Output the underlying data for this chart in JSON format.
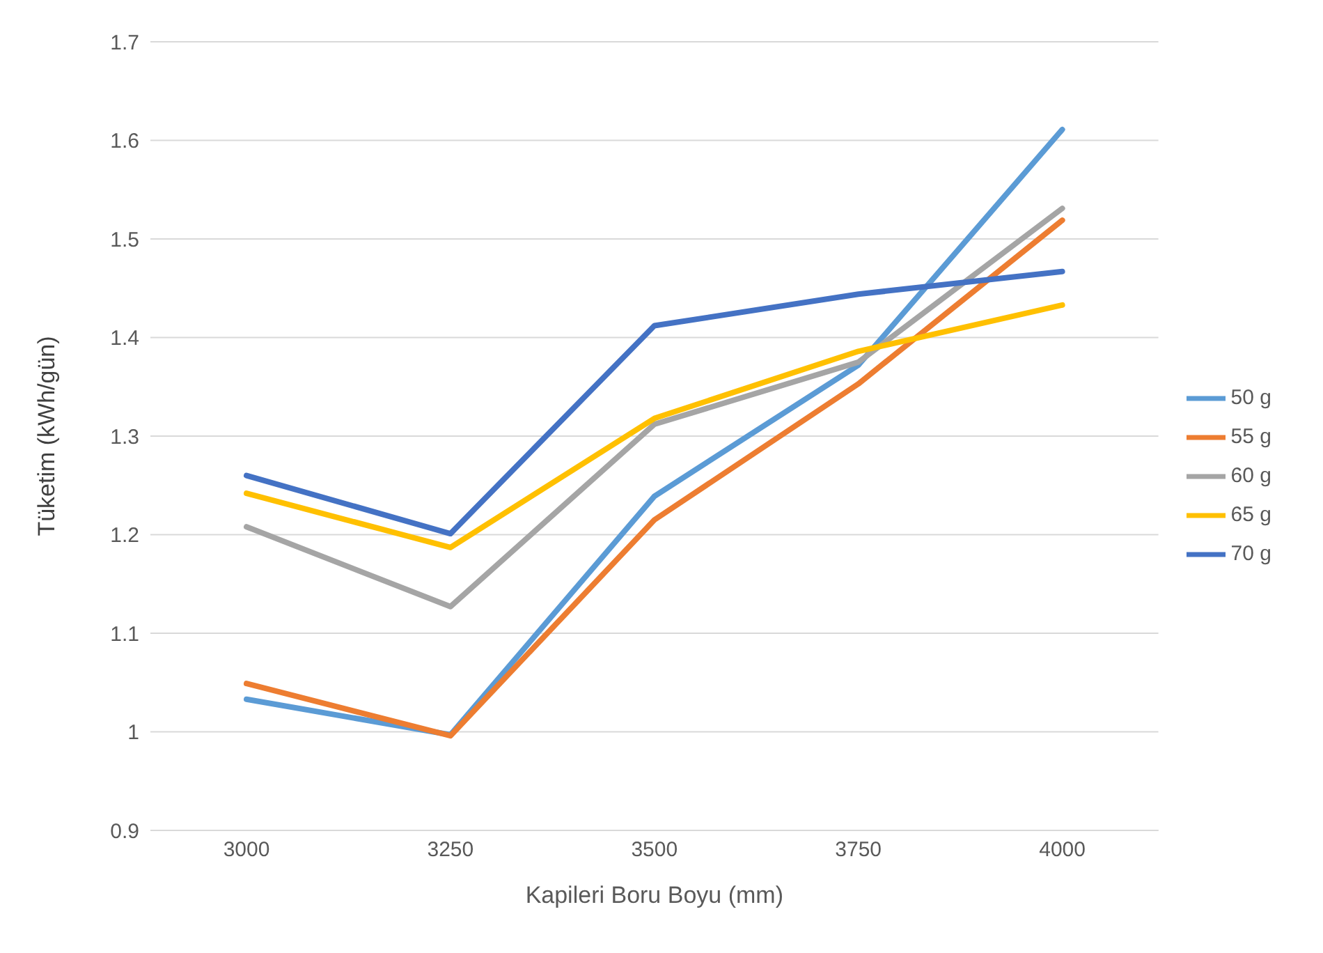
{
  "chart_data": {
    "type": "line",
    "xlabel": "Kapileri Boru Boyu (mm)",
    "ylabel": "Tüketim (kWh/gün)",
    "categories": [
      "3000",
      "3250",
      "3500",
      "3750",
      "4000"
    ],
    "series": [
      {
        "name": "50 g",
        "color": "#5b9bd5",
        "values": [
          1.033,
          0.997,
          1.239,
          1.372,
          1.611
        ]
      },
      {
        "name": "55 g",
        "color": "#ed7d31",
        "values": [
          1.049,
          0.996,
          1.215,
          1.353,
          1.519
        ]
      },
      {
        "name": "60 g",
        "color": "#a5a5a5",
        "values": [
          1.208,
          1.127,
          1.312,
          1.375,
          1.531
        ]
      },
      {
        "name": "65 g",
        "color": "#ffc000",
        "values": [
          1.242,
          1.187,
          1.318,
          1.386,
          1.433
        ]
      },
      {
        "name": "70 g",
        "color": "#4472c4",
        "values": [
          1.26,
          1.201,
          1.412,
          1.444,
          1.467
        ]
      }
    ],
    "ylim": [
      0.9,
      1.7
    ],
    "yticks": [
      0.9,
      1,
      1.1,
      1.2,
      1.3,
      1.4,
      1.5,
      1.6,
      1.7
    ],
    "grid": "y",
    "legend": "right",
    "marker": "none",
    "line_style": "solid"
  }
}
